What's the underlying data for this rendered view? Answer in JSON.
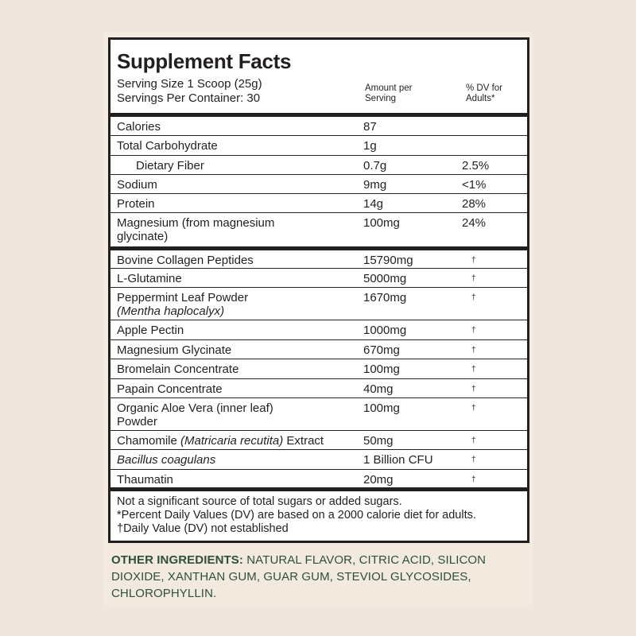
{
  "title": "Supplement Facts",
  "serving_size": "Serving Size 1 Scoop (25g)",
  "servings_per_container": "Servings Per Container: 30",
  "col_amount": [
    "Amount per",
    "Serving"
  ],
  "col_dv": [
    "% DV for",
    "Adults*"
  ],
  "nutrients": [
    {
      "name": "Calories",
      "amount": "87",
      "dv": ""
    },
    {
      "name": "Total Carbohydrate",
      "amount": "1g",
      "dv": ""
    },
    {
      "name": "Dietary Fiber",
      "amount": "0.7g",
      "dv": "2.5%"
    },
    {
      "name": "Sodium",
      "amount": "9mg",
      "dv": "<1%"
    },
    {
      "name": "Protein",
      "amount": "14g",
      "dv": "28%"
    },
    {
      "name": "Magnesium (from magnesium",
      "name2": "glycinate)",
      "amount": "100mg",
      "dv": "24%"
    }
  ],
  "ingredients": [
    {
      "name": "Bovine Collagen Peptides",
      "amount": "15790mg",
      "dv": "†"
    },
    {
      "name": "L-Glutamine",
      "amount": "5000mg",
      "dv": "†"
    },
    {
      "name": "Peppermint Leaf Powder",
      "name2": "(Mentha haplocalyx)",
      "amount": "1670mg",
      "dv": "†"
    },
    {
      "name": "Apple Pectin",
      "amount": "1000mg",
      "dv": "†"
    },
    {
      "name": "Magnesium Glycinate",
      "amount": "670mg",
      "dv": "†"
    },
    {
      "name": "Bromelain Concentrate",
      "amount": "100mg",
      "dv": "†"
    },
    {
      "name": "Papain Concentrate",
      "amount": "40mg",
      "dv": "†"
    },
    {
      "name": "Organic Aloe Vera (inner leaf)",
      "name2": "Powder",
      "amount": "100mg",
      "dv": "†"
    },
    {
      "name": "Chamomile ",
      "name_italic": "(Matricaria recutita)",
      "name_after": " Extract",
      "amount": "50mg",
      "dv": "†"
    },
    {
      "name_italic": "Bacillus coagulans",
      "amount": "1 Billion CFU",
      "dv": "†"
    },
    {
      "name": "Thaumatin",
      "amount": "20mg",
      "dv": "†"
    }
  ],
  "footnotes": [
    "Not a significant source of total sugars or added sugars.",
    "*Percent Daily Values (DV) are based on a 2000 calorie diet for adults.",
    "†Daily Value (DV) not established"
  ],
  "other_ingredients_label": "OTHER INGREDIENTS:",
  "other_ingredients": " NATURAL FLAVOR, CITRIC ACID, SILICON DIOXIDE, XANTHAN GUM, GUAR GUM, STEVIOL GLYCOSIDES, CHLOROPHYLLIN.",
  "colors": {
    "text": "#231f20",
    "other_ingredients": "#2f5038",
    "background": "#efe7df"
  }
}
